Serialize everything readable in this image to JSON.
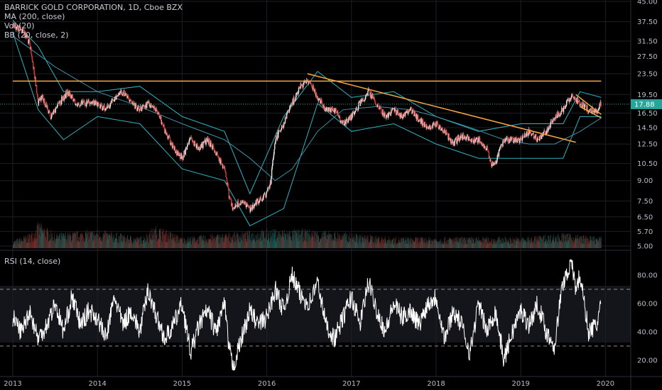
{
  "legend": {
    "title": "BARRICK GOLD CORPORATION, 1D, Cboe BZX",
    "ma": "MA (200, close)",
    "vol": "Vol (20)",
    "bb": "BB (20, close, 2)"
  },
  "rsi_legend": "RSI (14, close)",
  "colors": {
    "up": "#26a69a",
    "down": "#ef5350",
    "bg": "#000000",
    "band": "#2fb3bd",
    "trend": "#f7a642",
    "rsi": "#ffffff",
    "price_label_bg": "#26a69a",
    "grid": "#1c1f26"
  },
  "price_label": "17.88",
  "chart_data": [
    {
      "type": "candlestick",
      "title": "BARRICK GOLD CORPORATION, 1D, Cboe BZX",
      "y_scale": "log",
      "y_ticks": [
        "45.00",
        "37.50",
        "31.50",
        "27.50",
        "23.50",
        "19.50",
        "16.50",
        "14.50",
        "12.50",
        "10.50",
        "9.00",
        "7.50",
        "6.50",
        "5.70",
        "5.00"
      ],
      "y_tick_values": [
        45,
        37.5,
        31.5,
        27.5,
        23.5,
        19.5,
        16.5,
        14.5,
        12.5,
        10.5,
        9,
        7.5,
        6.5,
        5.7,
        5
      ],
      "x_ticks": [
        "2013",
        "2014",
        "2015",
        "2016",
        "2017",
        "2018",
        "2019",
        "2020"
      ],
      "x_tick_years": [
        2013,
        2014,
        2015,
        2016,
        2017,
        2018,
        2019,
        2020
      ],
      "x_range": [
        2013.0,
        2020.08
      ],
      "y_range": [
        5.0,
        45.0
      ],
      "last_price": 17.88,
      "series": [
        {
          "name": "Price",
          "x": [
            2013.0,
            2013.1,
            2013.2,
            2013.25,
            2013.3,
            2013.35,
            2013.45,
            2013.55,
            2013.65,
            2013.75,
            2013.85,
            2014.0,
            2014.1,
            2014.2,
            2014.3,
            2014.4,
            2014.5,
            2014.6,
            2014.7,
            2014.8,
            2014.9,
            2015.0,
            2015.1,
            2015.2,
            2015.3,
            2015.4,
            2015.5,
            2015.55,
            2015.6,
            2015.7,
            2015.8,
            2015.9,
            2016.0,
            2016.05,
            2016.1,
            2016.2,
            2016.3,
            2016.4,
            2016.5,
            2016.6,
            2016.7,
            2016.8,
            2016.9,
            2017.0,
            2017.1,
            2017.2,
            2017.3,
            2017.4,
            2017.5,
            2017.6,
            2017.7,
            2017.8,
            2017.9,
            2018.0,
            2018.1,
            2018.2,
            2018.3,
            2018.4,
            2018.5,
            2018.6,
            2018.65,
            2018.7,
            2018.8,
            2018.9,
            2019.0,
            2019.1,
            2019.2,
            2019.3,
            2019.4,
            2019.5,
            2019.6,
            2019.7,
            2019.8,
            2019.9,
            2019.95
          ],
          "y": [
            36,
            35,
            31,
            24,
            18,
            19,
            16,
            18,
            20,
            18,
            18,
            18,
            17,
            19,
            20,
            18,
            17,
            18,
            17,
            14,
            12,
            11,
            13,
            12,
            13,
            11.5,
            10,
            8,
            7,
            7.5,
            7,
            7.5,
            8,
            9,
            13,
            15,
            18,
            21,
            22,
            19,
            17,
            17,
            15,
            16,
            18,
            20,
            18,
            16,
            17,
            16,
            17,
            15.5,
            14.5,
            15,
            14,
            12.5,
            13.5,
            13,
            13,
            12,
            10.5,
            10.5,
            13,
            13,
            13,
            14,
            13,
            14,
            16,
            17,
            19.5,
            18,
            17,
            17,
            18
          ]
        },
        {
          "name": "MA (200, close)",
          "x": [
            2013.0,
            2013.5,
            2014.0,
            2014.5,
            2015.0,
            2015.5,
            2015.8,
            2016.1,
            2016.3,
            2016.6,
            2016.9,
            2017.3,
            2017.7,
            2018.0,
            2018.4,
            2018.8,
            2019.1,
            2019.4,
            2019.7,
            2019.95
          ],
          "y": [
            33,
            25,
            20,
            17.5,
            15,
            13,
            11,
            9,
            10,
            14,
            17,
            17.5,
            17,
            16,
            14.5,
            13,
            12.5,
            12.5,
            14,
            15.8
          ]
        },
        {
          "name": "BB upper",
          "x": [
            2013.0,
            2013.3,
            2013.6,
            2014.0,
            2014.5,
            2015.0,
            2015.5,
            2015.8,
            2016.2,
            2016.6,
            2017.0,
            2017.5,
            2018.0,
            2018.5,
            2019.0,
            2019.5,
            2019.7,
            2019.95
          ],
          "y": [
            38,
            30,
            20,
            20,
            21,
            16,
            14,
            8,
            16,
            24,
            19,
            20,
            16,
            14,
            15,
            15,
            20,
            19
          ]
        },
        {
          "name": "BB lower",
          "x": [
            2013.0,
            2013.3,
            2013.6,
            2014.0,
            2014.5,
            2015.0,
            2015.5,
            2015.8,
            2016.2,
            2016.6,
            2017.0,
            2017.5,
            2018.0,
            2018.5,
            2019.0,
            2019.5,
            2019.7,
            2019.95
          ],
          "y": [
            34,
            17,
            13,
            16,
            15,
            10,
            9,
            6,
            7,
            18,
            14,
            15,
            12.5,
            11,
            11,
            11,
            16,
            16
          ]
        },
        {
          "name": "Vol (20)",
          "x": [
            2013.0,
            2013.2,
            2013.3,
            2013.5,
            2014.0,
            2014.5,
            2014.7,
            2015.0,
            2015.5,
            2016.0,
            2016.5,
            2017.0,
            2017.5,
            2018.0,
            2018.5,
            2019.0,
            2019.5,
            2019.95
          ],
          "y": [
            0.2,
            0.4,
            0.7,
            0.4,
            0.5,
            0.3,
            0.6,
            0.3,
            0.4,
            0.5,
            0.5,
            0.4,
            0.3,
            0.3,
            0.3,
            0.3,
            0.4,
            0.3
          ]
        }
      ],
      "annotations": [
        {
          "name": "horizontal resistance",
          "x": [
            2013.0,
            2019.95
          ],
          "y": [
            22,
            22
          ]
        },
        {
          "name": "descending trendline",
          "x": [
            2016.48,
            2019.65
          ],
          "y": [
            23.5,
            12.7
          ]
        },
        {
          "name": "wedge upper",
          "x": [
            2019.65,
            2019.95
          ],
          "y": [
            19.5,
            16.3
          ]
        },
        {
          "name": "wedge lower",
          "x": [
            2019.7,
            2019.95
          ],
          "y": [
            17.5,
            15.8
          ]
        },
        {
          "name": "last price line",
          "x": [
            2013.0,
            2020.08
          ],
          "y": [
            17.88,
            17.88
          ]
        }
      ]
    },
    {
      "type": "line",
      "title": "RSI (14, close)",
      "y_ticks": [
        "80.00",
        "60.00",
        "40.00",
        "20.00"
      ],
      "y_tick_values": [
        80,
        60,
        40,
        20
      ],
      "y_range": [
        12,
        92
      ],
      "bands": [
        30,
        70
      ],
      "series": [
        {
          "name": "RSI",
          "x": [
            2013.0,
            2013.1,
            2013.2,
            2013.3,
            2013.4,
            2013.5,
            2013.6,
            2013.7,
            2013.8,
            2013.9,
            2014.0,
            2014.1,
            2014.2,
            2014.3,
            2014.4,
            2014.5,
            2014.6,
            2014.7,
            2014.8,
            2014.9,
            2015.0,
            2015.1,
            2015.2,
            2015.3,
            2015.4,
            2015.5,
            2015.55,
            2015.6,
            2015.7,
            2015.8,
            2015.9,
            2016.0,
            2016.1,
            2016.2,
            2016.3,
            2016.4,
            2016.5,
            2016.6,
            2016.7,
            2016.8,
            2016.9,
            2017.0,
            2017.1,
            2017.2,
            2017.3,
            2017.4,
            2017.5,
            2017.6,
            2017.7,
            2017.8,
            2017.9,
            2018.0,
            2018.1,
            2018.2,
            2018.3,
            2018.4,
            2018.5,
            2018.6,
            2018.7,
            2018.8,
            2018.9,
            2019.0,
            2019.1,
            2019.2,
            2019.3,
            2019.4,
            2019.45,
            2019.5,
            2019.6,
            2019.65,
            2019.7,
            2019.8,
            2019.9,
            2019.95
          ],
          "y": [
            50,
            40,
            55,
            35,
            45,
            60,
            40,
            65,
            45,
            55,
            50,
            35,
            65,
            45,
            55,
            40,
            70,
            50,
            35,
            45,
            60,
            25,
            45,
            55,
            40,
            60,
            30,
            15,
            35,
            55,
            45,
            50,
            70,
            55,
            80,
            65,
            60,
            75,
            45,
            35,
            50,
            65,
            45,
            75,
            55,
            40,
            60,
            50,
            55,
            45,
            60,
            65,
            35,
            55,
            45,
            25,
            60,
            40,
            55,
            20,
            40,
            55,
            45,
            60,
            40,
            30,
            55,
            75,
            90,
            70,
            80,
            40,
            45,
            63
          ]
        }
      ]
    }
  ]
}
